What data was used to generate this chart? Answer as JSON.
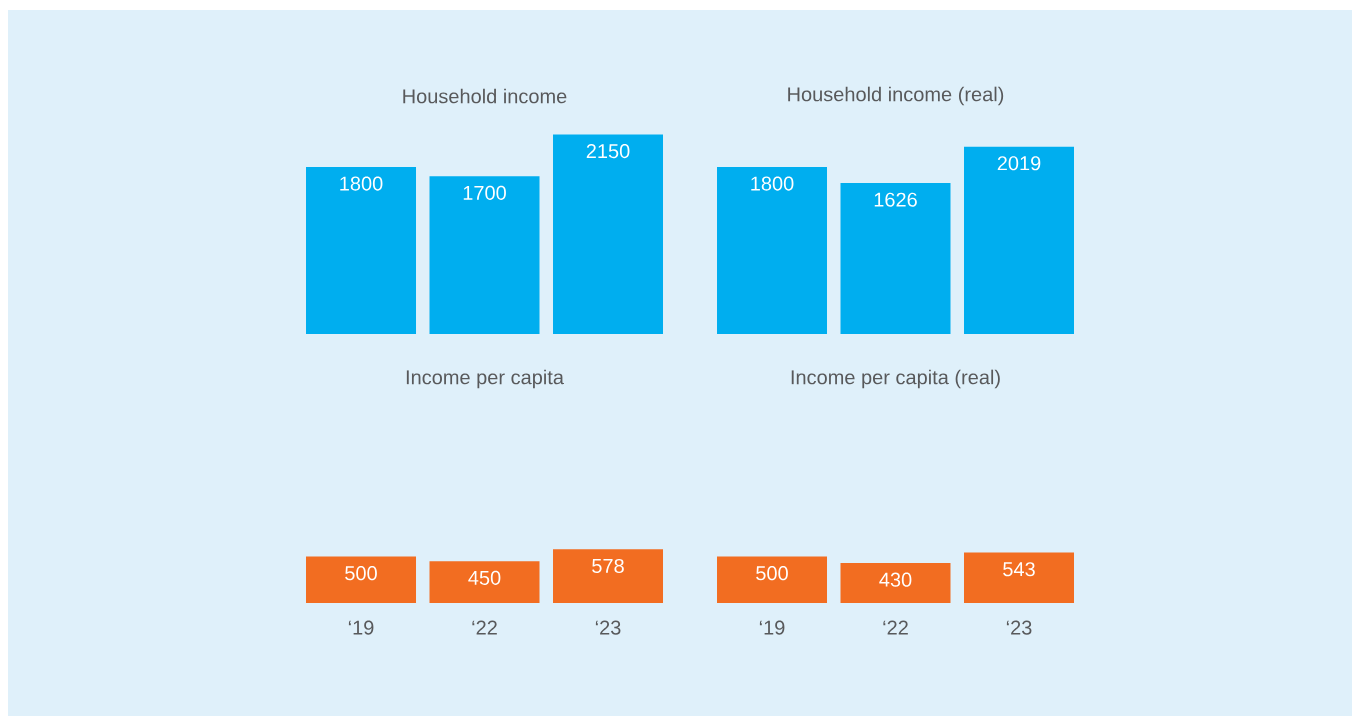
{
  "chart_data": [
    {
      "type": "bar",
      "title": "Household income",
      "categories": [
        null,
        null,
        null
      ],
      "values": [
        1800,
        1700,
        2150
      ],
      "color": "#00aeef",
      "data_labels": true
    },
    {
      "type": "bar",
      "title": "Household income (real)",
      "categories": [
        null,
        null,
        null
      ],
      "values": [
        1800,
        1626,
        2019
      ],
      "color": "#00aeef",
      "data_labels": true
    },
    {
      "type": "bar",
      "title": "Income per capita",
      "categories": [
        "‘19",
        "‘22",
        "‘23"
      ],
      "values": [
        500,
        450,
        578
      ],
      "color": "#f26d21",
      "data_labels": true
    },
    {
      "type": "bar",
      "title": "Income per capita (real)",
      "categories": [
        "‘19",
        "‘22",
        "‘23"
      ],
      "values": [
        500,
        430,
        543
      ],
      "color": "#f26d21",
      "data_labels": true
    }
  ]
}
